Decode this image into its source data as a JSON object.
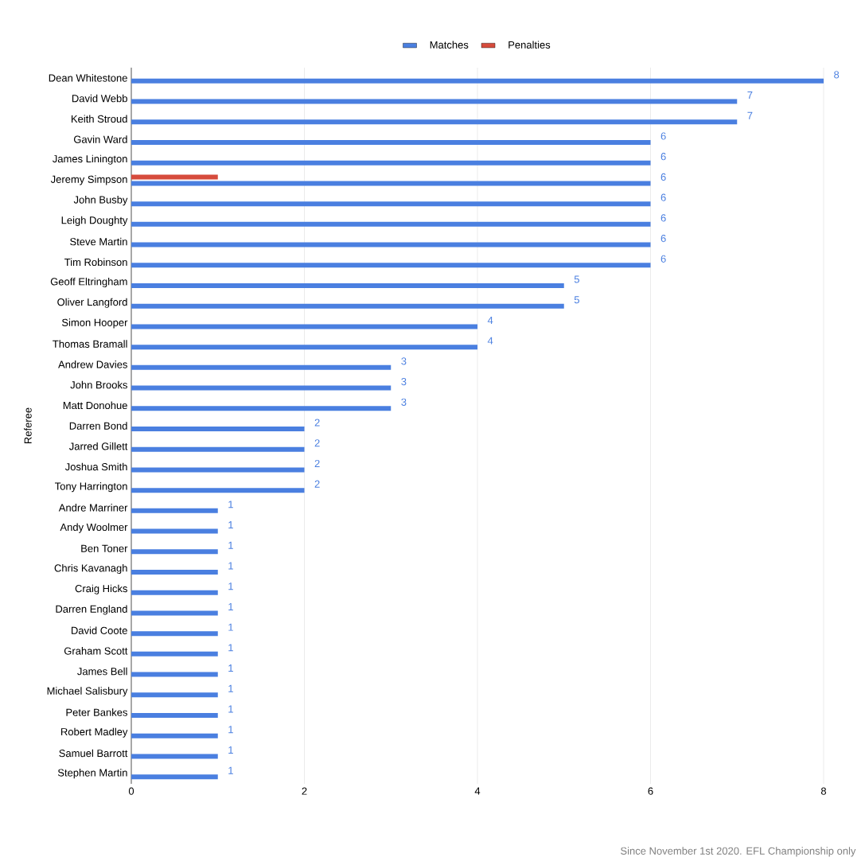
{
  "chart_data": {
    "type": "bar",
    "orientation": "horizontal",
    "ylabel": "Referee",
    "categories": [
      "Dean Whitestone",
      "David Webb",
      "Keith Stroud",
      "Gavin Ward",
      "James Linington",
      "Jeremy Simpson",
      "John Busby",
      "Leigh Doughty",
      "Steve Martin",
      "Tim Robinson",
      "Geoff Eltringham",
      "Oliver Langford",
      "Simon Hooper",
      "Thomas Bramall",
      "Andrew Davies",
      "John Brooks",
      "Matt Donohue",
      "Darren Bond",
      "Jarred Gillett",
      "Joshua Smith",
      "Tony Harrington",
      "Andre Marriner",
      "Andy Woolmer",
      "Ben Toner",
      "Chris Kavanagh",
      "Craig Hicks",
      "Darren England",
      "David Coote",
      "Graham Scott",
      "James Bell",
      "Michael Salisbury",
      "Peter Bankes",
      "Robert Madley",
      "Samuel Barrott",
      "Stephen Martin"
    ],
    "series": [
      {
        "name": "Matches",
        "color": "#4a7fe0",
        "values": [
          8,
          7,
          7,
          6,
          6,
          6,
          6,
          6,
          6,
          6,
          5,
          5,
          4,
          4,
          3,
          3,
          3,
          2,
          2,
          2,
          2,
          1,
          1,
          1,
          1,
          1,
          1,
          1,
          1,
          1,
          1,
          1,
          1,
          1,
          1
        ],
        "value_labels": [
          "8",
          "7",
          "7",
          "6",
          "6",
          "6",
          "6",
          "6",
          "6",
          "6",
          "5",
          "5",
          "4",
          "4",
          "3",
          "3",
          "3",
          "2",
          "2",
          "2",
          "2",
          "1",
          "1",
          "1",
          "1",
          "1",
          "1",
          "1",
          "1",
          "1",
          "1",
          "1",
          "1",
          "1",
          "1"
        ]
      },
      {
        "name": "Penalties",
        "color": "#d64b3c",
        "values": [
          null,
          null,
          null,
          null,
          null,
          1,
          null,
          null,
          null,
          null,
          null,
          null,
          null,
          null,
          null,
          null,
          null,
          null,
          null,
          null,
          null,
          null,
          null,
          null,
          null,
          null,
          null,
          null,
          null,
          null,
          null,
          null,
          null,
          null,
          null
        ]
      }
    ],
    "xlim": [
      0,
      8
    ],
    "xticks": [
      0,
      2,
      4,
      6,
      8
    ],
    "grid": "x",
    "legend": "top",
    "annotations": [
      "Since November 1st 2020. EFL Championship only"
    ]
  }
}
